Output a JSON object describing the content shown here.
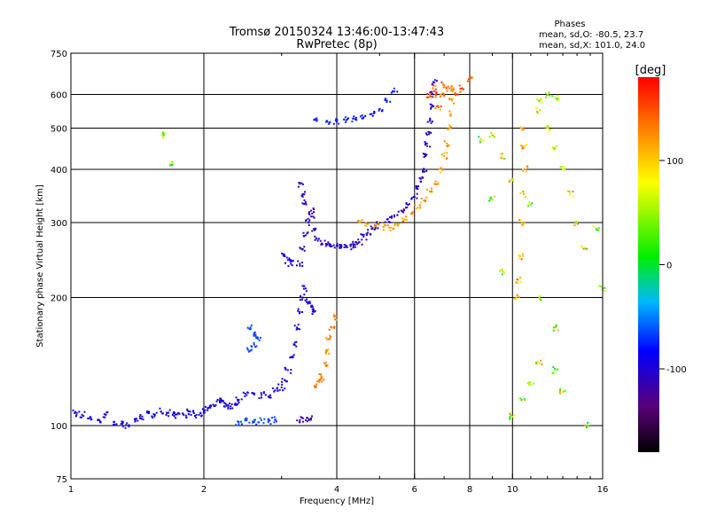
{
  "chart_data": {
    "type": "scatter",
    "title": "Tromsø 20150324 13:46:00-13:47:43",
    "subtitle": "RwPretec (8p)",
    "stats": {
      "heading": "Phases",
      "line1": "mean, sd,O: -80.5, 23.7",
      "line2": "mean, sd,X: 101.0, 24.0"
    },
    "xlabel": "Frequency [MHz]",
    "ylabel": "Stationary phase Virtual Height [km]",
    "xscale": "log",
    "yscale": "log",
    "xlim": [
      1,
      16
    ],
    "ylim": [
      75,
      750
    ],
    "grid": true,
    "xticks": [
      1,
      2,
      4,
      6,
      8,
      10,
      16
    ],
    "xtick_labels": [
      "1",
      "2",
      "4",
      "6",
      "8",
      "10",
      "16"
    ],
    "x_gridlines": [
      2,
      4,
      6,
      8,
      10
    ],
    "yticks": [
      75,
      100,
      200,
      300,
      400,
      500,
      600,
      750
    ],
    "ytick_labels": [
      "75",
      "100",
      "200",
      "300",
      "400",
      "500",
      "600",
      "750"
    ],
    "y_gridlines": [
      100,
      200,
      300,
      400,
      500,
      600
    ],
    "colorbar": {
      "label": "[deg]",
      "range": [
        -180,
        180
      ],
      "ticks": [
        100,
        0,
        -100
      ],
      "tick_labels": [
        "100",
        "0",
        "-100"
      ],
      "placement": "right"
    },
    "colors": {
      "axis": "#000000",
      "grid": "#000000",
      "background": "#ffffff"
    },
    "traces": [
      {
        "points": [
          [
            1.02,
            107
          ],
          [
            1.06,
            106
          ],
          [
            1.1,
            104
          ],
          [
            1.15,
            103
          ],
          [
            1.2,
            106
          ],
          [
            1.25,
            102
          ],
          [
            1.3,
            101
          ],
          [
            1.35,
            100
          ],
          [
            1.4,
            103
          ],
          [
            1.45,
            105
          ],
          [
            1.5,
            107
          ],
          [
            1.55,
            106
          ],
          [
            1.6,
            108
          ],
          [
            1.65,
            107
          ],
          [
            1.7,
            106
          ],
          [
            1.75,
            107
          ],
          [
            1.8,
            106
          ],
          [
            1.85,
            108
          ],
          [
            1.9,
            107
          ],
          [
            1.95,
            106
          ],
          [
            2.0,
            108
          ],
          [
            2.05,
            110
          ],
          [
            2.1,
            112
          ],
          [
            2.15,
            115
          ],
          [
            2.2,
            114
          ],
          [
            2.25,
            112
          ],
          [
            2.3,
            111
          ],
          [
            2.35,
            112
          ],
          [
            2.4,
            115
          ],
          [
            2.5,
            118
          ],
          [
            2.6,
            119
          ],
          [
            2.7,
            118
          ],
          [
            2.8,
            117
          ],
          [
            2.9,
            121
          ],
          [
            3.0,
            123
          ],
          [
            3.05,
            128
          ],
          [
            3.1,
            135
          ],
          [
            3.15,
            145
          ],
          [
            3.2,
            155
          ],
          [
            3.25,
            170
          ],
          [
            3.3,
            185
          ],
          [
            3.35,
            200
          ],
          [
            3.4,
            210
          ],
          [
            3.45,
            195
          ],
          [
            3.5,
            190
          ],
          [
            3.55,
            185
          ]
        ],
        "phase": -95,
        "spread": 30
      },
      {
        "points": [
          [
            2.4,
            102
          ],
          [
            2.5,
            103
          ],
          [
            2.6,
            102
          ],
          [
            2.7,
            103
          ],
          [
            2.8,
            102
          ],
          [
            2.9,
            103
          ]
        ],
        "phase": -65,
        "spread": 10
      },
      {
        "points": [
          [
            2.55,
            150
          ],
          [
            2.6,
            155
          ],
          [
            2.65,
            160
          ],
          [
            2.6,
            165
          ],
          [
            2.55,
            170
          ]
        ],
        "phase": -65,
        "spread": 10
      },
      {
        "points": [
          [
            3.3,
            103
          ],
          [
            3.4,
            103
          ],
          [
            3.5,
            104
          ]
        ],
        "phase": -115,
        "spread": 10
      },
      {
        "points": [
          [
            3.3,
            240
          ],
          [
            3.35,
            260
          ],
          [
            3.4,
            280
          ],
          [
            3.45,
            300
          ],
          [
            3.5,
            310
          ],
          [
            3.55,
            290
          ],
          [
            3.6,
            275
          ],
          [
            3.7,
            268
          ],
          [
            3.8,
            266
          ],
          [
            3.9,
            264
          ],
          [
            4.0,
            265
          ],
          [
            4.1,
            264
          ],
          [
            4.2,
            263
          ],
          [
            4.3,
            264
          ],
          [
            4.4,
            266
          ],
          [
            4.5,
            270
          ],
          [
            4.6,
            278
          ],
          [
            4.7,
            284
          ],
          [
            4.8,
            290
          ],
          [
            4.9,
            295
          ],
          [
            5.0,
            300
          ],
          [
            5.2,
            305
          ],
          [
            5.4,
            312
          ],
          [
            5.6,
            320
          ],
          [
            5.8,
            330
          ],
          [
            6.0,
            345
          ],
          [
            6.1,
            360
          ],
          [
            6.2,
            380
          ],
          [
            6.3,
            400
          ],
          [
            6.35,
            430
          ],
          [
            6.4,
            460
          ],
          [
            6.45,
            490
          ],
          [
            6.5,
            520
          ],
          [
            6.55,
            560
          ],
          [
            6.6,
            600
          ],
          [
            6.65,
            640
          ]
        ],
        "phase": -105,
        "spread": 30
      },
      {
        "points": [
          [
            3.3,
            370
          ],
          [
            3.35,
            350
          ],
          [
            3.4,
            335
          ],
          [
            3.5,
            320
          ]
        ],
        "phase": -110,
        "spread": 15
      },
      {
        "points": [
          [
            3.05,
            250
          ],
          [
            3.1,
            245
          ],
          [
            3.15,
            240
          ]
        ],
        "phase": -100,
        "spread": 10
      },
      {
        "points": [
          [
            3.6,
            520
          ],
          [
            3.8,
            520
          ],
          [
            4.0,
            518
          ],
          [
            4.2,
            522
          ],
          [
            4.4,
            525
          ],
          [
            4.6,
            530
          ],
          [
            4.8,
            540
          ],
          [
            5.0,
            555
          ],
          [
            5.2,
            580
          ],
          [
            5.4,
            610
          ]
        ],
        "phase": -80,
        "spread": 30
      },
      {
        "points": [
          [
            3.6,
            125
          ],
          [
            3.65,
            128
          ],
          [
            3.7,
            130
          ],
          [
            3.75,
            140
          ],
          [
            3.8,
            150
          ],
          [
            3.85,
            160
          ],
          [
            3.9,
            170
          ],
          [
            3.95,
            180
          ]
        ],
        "phase": 130,
        "spread": 30
      },
      {
        "points": [
          [
            4.5,
            300
          ],
          [
            4.7,
            298
          ],
          [
            4.9,
            296
          ],
          [
            5.1,
            293
          ],
          [
            5.3,
            292
          ],
          [
            5.5,
            295
          ],
          [
            5.7,
            305
          ],
          [
            5.9,
            315
          ],
          [
            6.1,
            325
          ],
          [
            6.3,
            338
          ],
          [
            6.5,
            355
          ],
          [
            6.7,
            375
          ],
          [
            6.9,
            400
          ],
          [
            7.0,
            430
          ],
          [
            7.1,
            460
          ],
          [
            7.2,
            500
          ],
          [
            7.25,
            540
          ],
          [
            7.3,
            580
          ],
          [
            7.35,
            620
          ]
        ],
        "phase": 120,
        "spread": 40
      },
      {
        "points": [
          [
            6.5,
            600
          ],
          [
            6.6,
            620
          ],
          [
            6.7,
            600
          ],
          [
            6.8,
            560
          ],
          [
            6.9,
            600
          ],
          [
            7.0,
            630
          ],
          [
            7.2,
            620
          ],
          [
            7.5,
            600
          ],
          [
            7.7,
            620
          ],
          [
            8.0,
            650
          ]
        ],
        "phase": 140,
        "spread": 60
      },
      {
        "points": [
          [
            10.5,
            500
          ],
          [
            10.6,
            450
          ],
          [
            10.7,
            400
          ],
          [
            10.6,
            350
          ],
          [
            10.5,
            300
          ],
          [
            10.4,
            250
          ],
          [
            10.3,
            220
          ],
          [
            10.2,
            200
          ]
        ],
        "phase": 110,
        "spread": 80
      },
      {
        "points": [
          [
            9.0,
            480
          ],
          [
            9.5,
            430
          ],
          [
            10.0,
            380
          ],
          [
            11.5,
            550
          ],
          [
            12.0,
            500
          ],
          [
            12.5,
            450
          ],
          [
            13.0,
            400
          ],
          [
            13.5,
            350
          ],
          [
            14.0,
            300
          ],
          [
            14.5,
            260
          ]
        ],
        "phase": 80,
        "spread": 120
      },
      {
        "points": [
          [
            10.0,
            105
          ],
          [
            10.5,
            115
          ],
          [
            11.0,
            125
          ],
          [
            11.5,
            140
          ],
          [
            12.5,
            135
          ],
          [
            13.0,
            120
          ],
          [
            12.5,
            170
          ],
          [
            12.0,
            600
          ],
          [
            12.5,
            590
          ],
          [
            11.5,
            580
          ]
        ],
        "phase": 60,
        "spread": 150
      },
      {
        "points": [
          [
            1.62,
            480
          ],
          [
            1.68,
            410
          ],
          [
            9.0,
            340
          ],
          [
            9.5,
            230
          ],
          [
            8.5,
            470
          ],
          [
            11.0,
            330
          ],
          [
            11.5,
            200
          ],
          [
            14.8,
            100
          ],
          [
            15.5,
            290
          ],
          [
            16.0,
            210
          ]
        ],
        "phase": 40,
        "spread": 150
      }
    ]
  }
}
